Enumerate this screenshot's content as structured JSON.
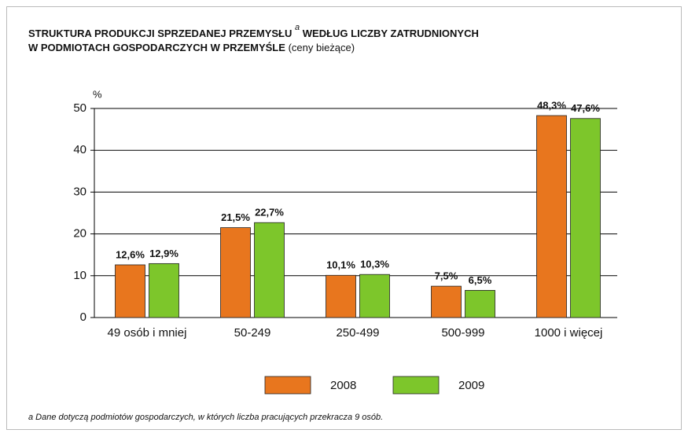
{
  "chart_data": {
    "type": "bar",
    "title": "STRUKTURA PRODUKCJI SPRZEDANEJ PRZEMYSŁU",
    "title_superscript": "a",
    "title_continued": "WEDŁUG LICZBY ZATRUDNIONYCH",
    "title_line2": "W PODMIOTACH GOSPODARCZYCH W PRZEMYŚLE",
    "subtitle": "(ceny bieżące)",
    "y_label": "%",
    "categories": [
      "49 osób i mniej",
      "50-249",
      "250-499",
      "500-999",
      "1000 i więcej"
    ],
    "series": [
      {
        "name": "2008",
        "color": "#e8761e",
        "values": [
          12.6,
          21.5,
          10.1,
          7.5,
          48.3
        ],
        "value_labels": [
          "12,6%",
          "21,5%",
          "10,1%",
          "7,5%",
          "48,3%"
        ]
      },
      {
        "name": "2009",
        "color": "#7dc62b",
        "values": [
          12.9,
          22.7,
          10.3,
          6.5,
          47.6
        ],
        "value_labels": [
          "12,9%",
          "22,7%",
          "10,3%",
          "6,5%",
          "47,6%"
        ]
      }
    ],
    "ylim": [
      0,
      50
    ],
    "yticks": [
      0,
      10,
      20,
      30,
      40,
      50
    ],
    "grid": true,
    "footnote": "a Dane dotyczą podmiotów gospodarczych, w których liczba pracujących przekracza 9 osób."
  }
}
